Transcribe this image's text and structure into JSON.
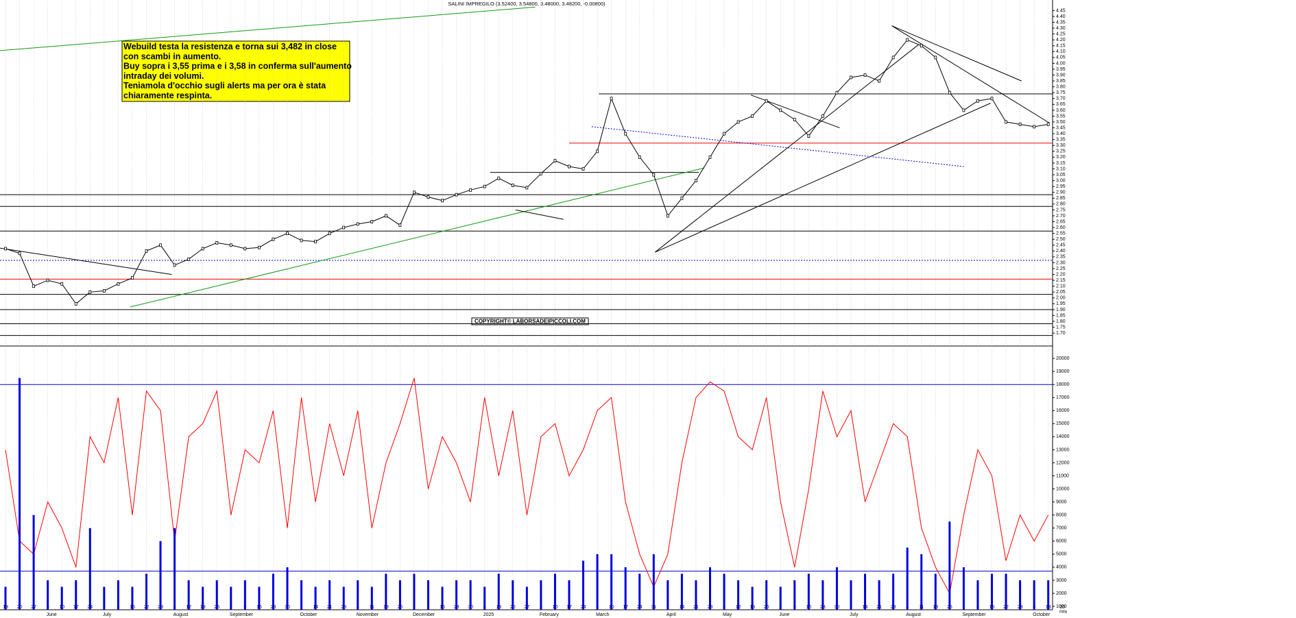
{
  "chart_data": {
    "type": "line",
    "title": "SALINI IMPREGILO (3.52400, 3.54800, 3.48000, 3.48200, -0.00800)",
    "annotation": [
      "Webuild testa la resistenza e torna sui 3,482 in close",
      "con scambi in aumento.",
      "Buy sopra i 3,55 prima e i 3,58 in conferma sull'aumento",
      "intraday dei volumi.",
      "Teniamola d'occhio sugli alerts ma per ora è stata",
      "chiaramente respinta."
    ],
    "copyright": "COPYRIGHT© LABORSADEIPICCOLI.COM",
    "y2_unit": "mila",
    "categories": [
      "13",
      "20",
      "27",
      "3",
      "10",
      "17",
      "24",
      "1",
      "8",
      "15",
      "22",
      "29",
      "5",
      "12",
      "19",
      "26",
      "2",
      "9",
      "16",
      "23",
      "30",
      "7",
      "14",
      "21",
      "28",
      "4",
      "11",
      "18",
      "25",
      "2",
      "9",
      "16",
      "23",
      "30",
      "6",
      "13",
      "20",
      "27",
      "3",
      "10",
      "17",
      "24",
      "3",
      "10",
      "17",
      "24",
      "31",
      "7",
      "14",
      "21",
      "28",
      "5",
      "12",
      "19",
      "26",
      "2",
      "9",
      "16",
      "23",
      "30",
      "7",
      "14",
      "21",
      "28",
      "4",
      "11",
      "18",
      "25",
      "1",
      "8",
      "15",
      "22",
      "29",
      "6",
      "13",
      "20"
    ],
    "months": [
      null,
      null,
      null,
      "June",
      null,
      null,
      null,
      "July",
      null,
      null,
      null,
      null,
      "August",
      null,
      null,
      null,
      "September",
      null,
      null,
      null,
      null,
      "October",
      null,
      null,
      null,
      "November",
      null,
      null,
      null,
      "December",
      null,
      null,
      null,
      null,
      "2025",
      null,
      null,
      null,
      "February",
      null,
      null,
      null,
      "March",
      null,
      null,
      null,
      null,
      "April",
      null,
      null,
      null,
      "May",
      null,
      null,
      null,
      "June",
      null,
      null,
      null,
      null,
      "July",
      null,
      null,
      null,
      "August",
      null,
      null,
      null,
      "September",
      null,
      null,
      null,
      null,
      "October",
      null,
      null
    ],
    "series": [
      {
        "color": "#000000",
        "values": [
          2.42,
          2.38,
          2.1,
          2.15,
          2.12,
          1.95,
          2.05,
          2.06,
          2.12,
          2.17,
          2.4,
          2.45,
          2.28,
          2.33,
          2.42,
          2.47,
          2.45,
          2.42,
          2.43,
          2.5,
          2.55,
          2.49,
          2.48,
          2.55,
          2.6,
          2.63,
          2.65,
          2.7,
          2.62,
          2.9,
          2.86,
          2.83,
          2.88,
          2.92,
          2.95,
          3.02,
          2.96,
          2.94,
          3.06,
          3.17,
          3.12,
          3.1,
          3.25,
          3.7,
          3.4,
          3.2,
          3.05,
          2.7,
          2.85,
          3.0,
          3.2,
          3.4,
          3.5,
          3.55,
          3.68,
          3.6,
          3.52,
          3.38,
          3.55,
          3.75,
          3.88,
          3.9,
          3.85,
          4.05,
          4.2,
          4.15,
          4.05,
          3.75,
          3.6,
          3.68,
          3.7,
          3.5,
          3.48,
          3.46,
          3.48,
          null
        ]
      },
      {
        "color": "#ff0000",
        "axis": "y2",
        "values": [
          13000,
          6000,
          5000,
          9000,
          7000,
          4000,
          14000,
          12000,
          17000,
          8000,
          17500,
          16000,
          6000,
          14000,
          15000,
          17500,
          8000,
          13000,
          12000,
          16000,
          7000,
          17000,
          9000,
          15000,
          11000,
          16000,
          7000,
          12000,
          15000,
          18500,
          10000,
          14000,
          12000,
          9000,
          17000,
          11000,
          16000,
          8000,
          14000,
          15000,
          11000,
          13000,
          16000,
          17000,
          9000,
          5000,
          2500,
          5000,
          12000,
          17000,
          18200,
          17500,
          14000,
          13000,
          17000,
          9000,
          4000,
          10000,
          17500,
          14000,
          16000,
          9000,
          12000,
          15000,
          14000,
          7000,
          4000,
          2000,
          8000,
          13000,
          11000,
          4500,
          8000,
          6000,
          8000,
          null
        ]
      },
      {
        "color": "#0000dd",
        "axis": "y2",
        "type": "bar",
        "values": [
          2500,
          18500,
          8000,
          3000,
          2500,
          3000,
          7000,
          2500,
          3000,
          2500,
          3500,
          6000,
          7000,
          3000,
          2500,
          3000,
          2500,
          3000,
          2500,
          3500,
          4000,
          3000,
          2500,
          3000,
          2500,
          3000,
          2500,
          3500,
          3000,
          3500,
          3000,
          2500,
          3000,
          3000,
          2500,
          3500,
          3000,
          2500,
          3000,
          3500,
          3000,
          4500,
          5000,
          5000,
          4000,
          3500,
          5000,
          3000,
          3500,
          3000,
          4000,
          3500,
          3000,
          2500,
          3000,
          2500,
          3000,
          3500,
          3000,
          4000,
          3000,
          3500,
          3000,
          3500,
          5500,
          5000,
          3500,
          7500,
          4000,
          3000,
          3500,
          3500,
          3000,
          3000,
          3000,
          null
        ]
      }
    ],
    "levels": [
      {
        "value": 3.74,
        "color": "#000000",
        "start": 42.1
      },
      {
        "value": 3.32,
        "color": "#ee0000",
        "start": 40
      },
      {
        "value": 3.07,
        "color": "#000000",
        "start": 34.4,
        "end": 49.2
      },
      {
        "value": 2.88,
        "color": "#000000"
      },
      {
        "value": 2.78,
        "color": "#000000"
      },
      {
        "value": 2.57,
        "color": "#000000"
      },
      {
        "value": 2.32,
        "color": "#0000cc",
        "dashed": true
      },
      {
        "value": 2.16,
        "color": "#ee0000"
      },
      {
        "value": 2.03,
        "color": "#000000"
      },
      {
        "value": 1.9,
        "color": "#000000"
      },
      {
        "value": 1.78,
        "color": "#000000"
      },
      {
        "value": 1.68,
        "color": "#000000"
      }
    ],
    "trendlines": [
      {
        "color": "#119911",
        "points": [
          [
            -0.4,
            4.108
          ],
          [
            37.6,
            4.48
          ]
        ]
      },
      {
        "color": "#119911",
        "points": [
          [
            8.86,
            1.923
          ],
          [
            49.6,
            3.109
          ]
        ]
      },
      {
        "color": "#000000",
        "points": [
          [
            46.1,
            2.39
          ],
          [
            64.8,
            4.16
          ]
        ]
      },
      {
        "color": "#000000",
        "points": [
          [
            46.1,
            2.39
          ],
          [
            69.9,
            3.66
          ]
        ]
      },
      {
        "color": "#000000",
        "points": [
          [
            62.9,
            4.32
          ],
          [
            72.1,
            3.85
          ]
        ]
      },
      {
        "color": "#000000",
        "points": [
          [
            62.9,
            4.32
          ],
          [
            74.1,
            3.49
          ]
        ]
      },
      {
        "color": "#0000cc",
        "dashed": true,
        "points": [
          [
            41.6,
            3.46
          ],
          [
            68,
            3.12
          ]
        ]
      },
      {
        "color": "#000000",
        "points": [
          [
            -0.4,
            2.425
          ],
          [
            11.8,
            2.2
          ]
        ]
      },
      {
        "color": "#000000",
        "points": [
          [
            52.9,
            3.73
          ],
          [
            59.2,
            3.45
          ]
        ]
      },
      {
        "color": "#000000",
        "points": [
          [
            36.2,
            2.75
          ],
          [
            39.6,
            2.67
          ]
        ]
      }
    ],
    "y2_levels": [
      18000,
      3700
    ],
    "ylim": [
      1.59,
      4.54
    ],
    "yticks": [
      {
        "value": 1.7,
        "label": "1.70"
      },
      1.75,
      {
        "value": 1.8,
        "label": "1.80"
      },
      1.85,
      {
        "value": 1.9,
        "label": "1.90"
      },
      1.95,
      {
        "value": 2,
        "label": "2.00"
      },
      2.05,
      {
        "value": 2.1,
        "label": "2.10"
      },
      2.15,
      {
        "value": 2.2,
        "label": "2.20"
      },
      2.25,
      {
        "value": 2.3,
        "label": "2.30"
      },
      2.35,
      {
        "value": 2.4,
        "label": "2.40"
      },
      2.45,
      {
        "value": 2.5,
        "label": "2.50"
      },
      2.55,
      {
        "value": 2.6,
        "label": "2.60"
      },
      2.65,
      {
        "value": 2.7,
        "label": "2.70"
      },
      2.75,
      {
        "value": 2.8,
        "label": "2.80"
      },
      2.85,
      {
        "value": 2.9,
        "label": "2.90"
      },
      2.95,
      {
        "value": 3,
        "label": "3.00"
      },
      3.05,
      {
        "value": 3.1,
        "label": "3.10"
      },
      3.15,
      {
        "value": 3.2,
        "label": "3.20"
      },
      3.25,
      {
        "value": 3.3,
        "label": "3.30"
      },
      3.35,
      {
        "value": 3.4,
        "label": "3.40"
      },
      3.45,
      {
        "value": 3.5,
        "label": "3.50"
      },
      3.55,
      {
        "value": 3.6,
        "label": "3.60"
      },
      3.65,
      {
        "value": 3.7,
        "label": "3.70"
      },
      3.75,
      {
        "value": 3.8,
        "label": "3.80"
      },
      3.85,
      {
        "value": 3.9,
        "label": "3.90"
      },
      3.95,
      {
        "value": 4,
        "label": "4.00"
      },
      4.05,
      {
        "value": 4.1,
        "label": "4.10"
      },
      4.15,
      {
        "value": 4.2,
        "label": "4.20"
      },
      4.25,
      {
        "value": 4.3,
        "label": "4.30"
      },
      4.35,
      {
        "value": 4.4,
        "label": "4.40"
      },
      4.45
    ],
    "y2lim": [
      740,
      20950
    ],
    "y2ticks": [
      1000,
      2000,
      3000,
      4000,
      5000,
      6000,
      7000,
      8000,
      9000,
      10000,
      11000,
      12000,
      13000,
      14000,
      15000,
      16000,
      17000,
      18000,
      19000,
      20000
    ],
    "grid": true
  }
}
